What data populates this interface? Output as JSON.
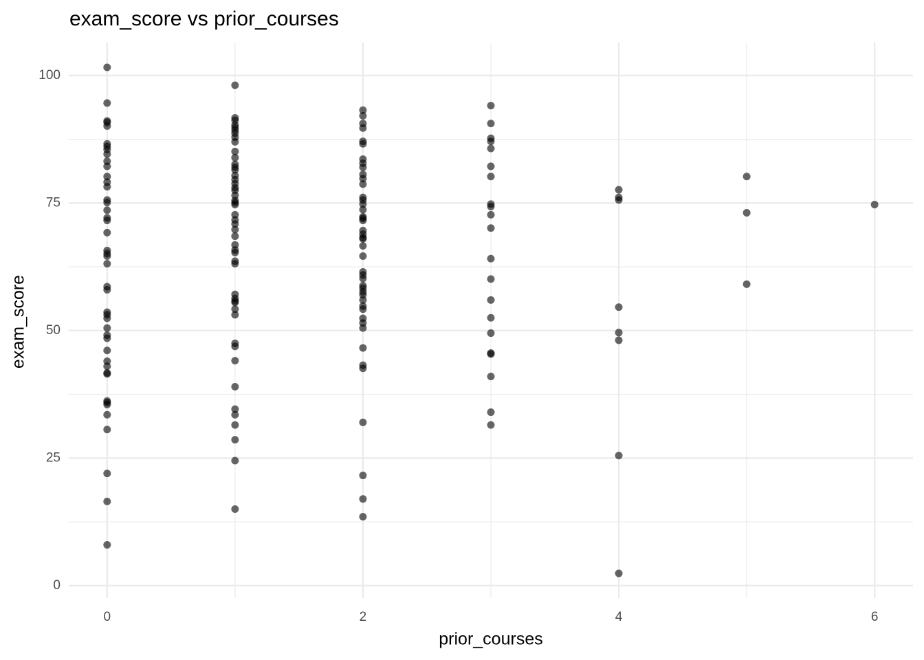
{
  "chart_data": {
    "type": "scatter",
    "title": "exam_score vs prior_courses",
    "x_label": "prior_courses",
    "y_label": "exam_score",
    "color": "#000000",
    "opacity": 0.6,
    "xlim": [
      -0.3,
      6.3
    ],
    "ylim": [
      -2.45,
      106.45
    ],
    "xticks": [
      0,
      2,
      4,
      6
    ],
    "yticks": [
      0,
      25,
      50,
      75,
      100
    ],
    "grid": true,
    "minor_grid": true,
    "x": [
      0,
      0,
      0,
      0,
      0,
      0,
      0,
      0,
      0,
      0,
      0,
      0,
      0,
      0,
      0,
      0,
      0,
      0,
      0,
      0,
      0,
      0,
      0,
      0,
      0,
      0,
      0,
      0,
      0,
      0,
      0,
      0,
      0,
      0,
      0,
      0,
      0,
      0,
      0,
      0,
      0,
      0,
      0,
      0,
      0,
      1,
      1,
      1,
      1,
      1,
      1,
      1,
      1,
      1,
      1,
      1,
      1,
      1,
      1,
      1,
      1,
      1,
      1,
      1,
      1,
      1,
      1,
      1,
      1,
      1,
      1,
      1,
      1,
      1,
      1,
      1,
      1,
      1,
      1,
      1,
      1,
      1,
      1,
      1,
      1,
      1,
      1,
      1,
      1,
      1,
      1,
      1,
      1,
      1,
      2,
      2,
      2,
      2,
      2,
      2,
      2,
      2,
      2,
      2,
      2,
      2,
      2,
      2,
      2,
      2,
      2,
      2,
      2,
      2,
      2,
      2,
      2,
      2,
      2,
      2,
      2,
      2,
      2,
      2,
      2,
      2,
      2,
      2,
      2,
      2,
      2,
      2,
      2,
      2,
      2,
      2,
      2,
      2,
      2,
      3,
      3,
      3,
      3,
      3,
      3,
      3,
      3,
      3,
      3,
      3,
      3,
      3,
      3,
      3,
      3,
      3,
      3,
      3,
      3,
      3,
      4,
      4,
      4,
      4,
      4,
      4,
      4,
      4,
      5,
      5,
      5,
      6
    ],
    "y": [
      101.6,
      94.6,
      91.1,
      90.8,
      90.1,
      86.6,
      86.1,
      85.5,
      84.6,
      83.2,
      82.2,
      80.2,
      79.1,
      78.2,
      75.6,
      75.1,
      73.6,
      72.1,
      71.6,
      69.2,
      65.7,
      65.1,
      64.6,
      63.1,
      58.6,
      58.0,
      53.6,
      53.1,
      52.4,
      50.5,
      49.1,
      48.5,
      46.1,
      44.0,
      43.0,
      41.7,
      41.5,
      36.2,
      35.9,
      35.5,
      33.5,
      30.6,
      22.0,
      16.5,
      8.0,
      98.1,
      91.7,
      91.2,
      90.3,
      89.8,
      89.3,
      88.7,
      87.9,
      87.0,
      85.1,
      83.9,
      82.6,
      82.0,
      81.5,
      80.4,
      79.6,
      78.8,
      78.0,
      77.5,
      76.5,
      75.5,
      75.1,
      74.7,
      72.7,
      71.7,
      70.9,
      69.8,
      68.5,
      66.8,
      65.8,
      65.3,
      63.6,
      63.1,
      57.1,
      56.3,
      55.8,
      55.5,
      54.2,
      53.1,
      47.5,
      46.9,
      44.1,
      39.0,
      34.6,
      33.5,
      31.5,
      28.6,
      24.5,
      15.0,
      93.2,
      92.1,
      90.6,
      89.7,
      87.1,
      86.6,
      83.6,
      82.8,
      82.0,
      80.6,
      79.8,
      78.7,
      76.1,
      75.6,
      74.8,
      73.7,
      72.3,
      72.0,
      71.6,
      69.6,
      68.9,
      68.2,
      68.0,
      66.6,
      64.6,
      61.5,
      60.9,
      60.2,
      58.8,
      58.3,
      57.6,
      57.0,
      56.0,
      54.8,
      54.2,
      52.4,
      51.5,
      50.5,
      46.6,
      43.2,
      42.6,
      32.0,
      21.6,
      17.0,
      13.5,
      94.1,
      90.6,
      87.7,
      87.1,
      85.7,
      82.2,
      80.2,
      74.8,
      74.3,
      72.7,
      70.1,
      64.1,
      60.1,
      56.0,
      52.5,
      49.5,
      45.6,
      45.4,
      41.0,
      34.0,
      31.5,
      77.6,
      76.1,
      75.6,
      54.6,
      49.6,
      48.1,
      25.5,
      2.4,
      80.2,
      73.1,
      59.1,
      74.7
    ]
  }
}
